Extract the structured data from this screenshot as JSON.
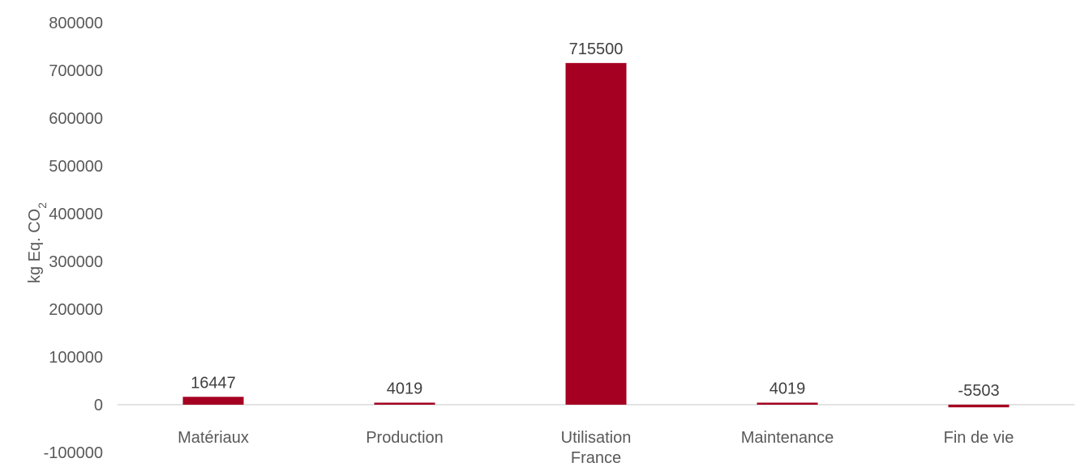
{
  "chart_data": {
    "type": "bar",
    "categories": [
      [
        "Matériaux"
      ],
      [
        "Production"
      ],
      [
        "Utilisation",
        "France"
      ],
      [
        "Maintenance"
      ],
      [
        "Fin de vie"
      ]
    ],
    "values": [
      16447,
      4019,
      715500,
      4019,
      -5503
    ],
    "data_labels": [
      "16447",
      "4019",
      "715500",
      "4019",
      "-5503"
    ],
    "ylabel": {
      "main": "kg Eq. CO",
      "subscript": "2"
    },
    "yticks": [
      -100000,
      0,
      100000,
      200000,
      300000,
      400000,
      500000,
      600000,
      700000,
      800000
    ],
    "ylim": [
      -100000,
      800000
    ],
    "grid": false,
    "legend": "none",
    "colors": {
      "bar": "#A50021",
      "axis": "#D9D9D9",
      "text": "#595959",
      "label": "#404040"
    }
  }
}
